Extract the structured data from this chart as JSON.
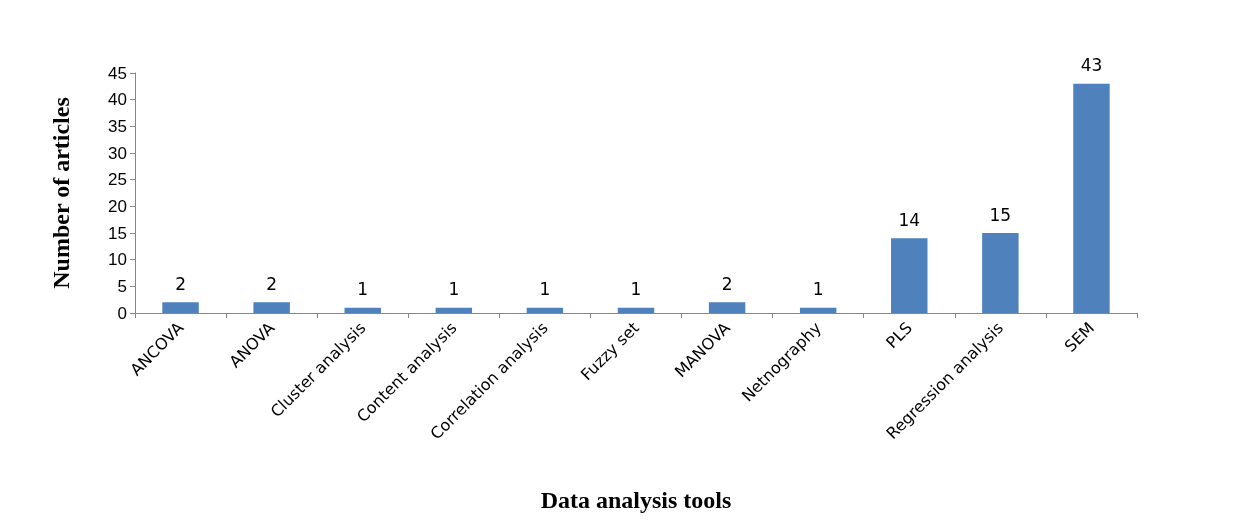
{
  "chart_data": {
    "type": "bar",
    "xlabel": "Data analysis tools",
    "ylabel": "Number of articles",
    "categories": [
      "ANCOVA",
      "ANOVA",
      "Cluster analysis",
      "Content analysis",
      "Correlation analysis",
      "Fuzzy set",
      "MANOVA",
      "Netnography",
      "PLS",
      "Regression analysis",
      "SEM"
    ],
    "values": [
      2,
      2,
      1,
      1,
      1,
      1,
      2,
      1,
      14,
      15,
      43
    ],
    "color": "#4f81bd",
    "data_labels": true,
    "ylim": [
      0,
      45
    ],
    "yticks": [
      0,
      5,
      10,
      15,
      20,
      25,
      30,
      35,
      40,
      45
    ],
    "grid": false
  }
}
